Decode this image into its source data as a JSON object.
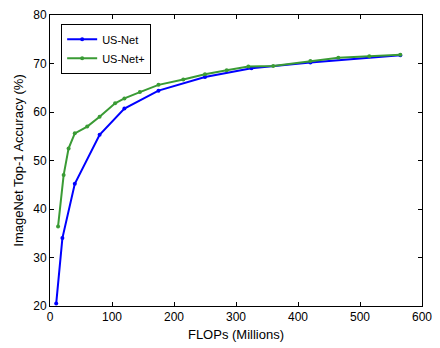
{
  "chart_data": {
    "type": "line",
    "x_label": "FLOPs (Millions)",
    "y_label": "ImageNet Top-1 Accuracy (%)",
    "xlim": [
      0,
      600
    ],
    "xticks": [
      0,
      100,
      200,
      300,
      400,
      500,
      600
    ],
    "ylim": [
      20,
      80
    ],
    "yticks": [
      20,
      30,
      40,
      50,
      60,
      70,
      80
    ],
    "grid": false,
    "legend": "top-left",
    "series": [
      {
        "name": "US-Net",
        "color": "#0000ff",
        "marker": "circle",
        "line_style": "solid",
        "x": [
          10,
          20,
          40,
          80,
          120,
          175,
          250,
          325,
          420,
          565
        ],
        "values": [
          20.5,
          34.0,
          45.2,
          55.3,
          60.7,
          64.4,
          67.2,
          69.0,
          70.2,
          71.7
        ]
      },
      {
        "name": "US-Net+",
        "color": "#3a9b35",
        "marker": "circle",
        "line_style": "solid",
        "x": [
          13,
          22,
          30,
          40,
          60,
          80,
          105,
          120,
          145,
          175,
          215,
          250,
          285,
          320,
          360,
          420,
          465,
          515,
          565
        ],
        "values": [
          36.4,
          47.0,
          52.5,
          55.6,
          57.0,
          59.0,
          61.8,
          62.8,
          64.1,
          65.6,
          66.7,
          67.8,
          68.6,
          69.4,
          69.5,
          70.5,
          71.2,
          71.5,
          71.8
        ]
      }
    ]
  }
}
